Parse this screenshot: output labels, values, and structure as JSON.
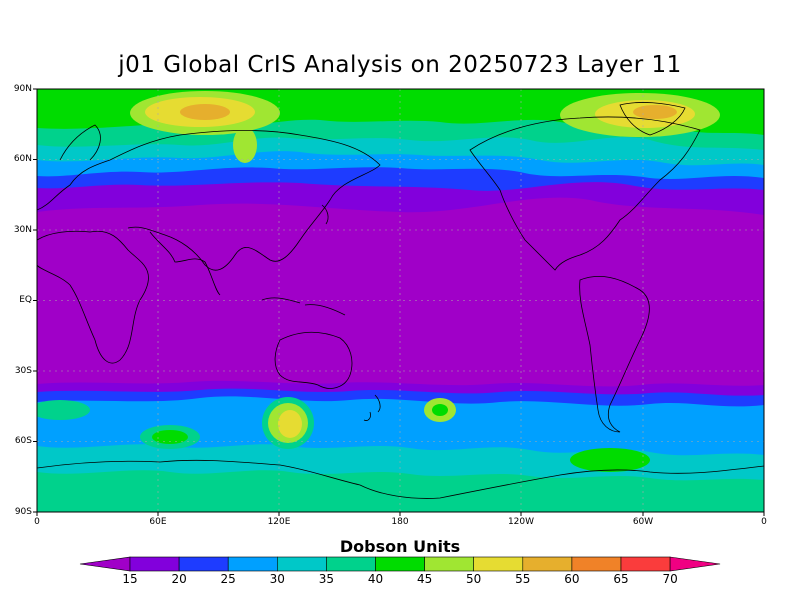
{
  "title": "j01 Global CrIS Analysis on 20250723 Layer 11",
  "lat_labels": [
    "90N",
    "60N",
    "30N",
    "EQ",
    "30S",
    "60S",
    "90S"
  ],
  "lon_labels": [
    "0",
    "60E",
    "120E",
    "180",
    "120W",
    "60W",
    "0"
  ],
  "colorbar": {
    "title": "Dobson Units",
    "ticks": [
      "15",
      "20",
      "25",
      "30",
      "35",
      "40",
      "45",
      "50",
      "55",
      "60",
      "65",
      "70"
    ],
    "colors": [
      "#a000c8",
      "#8200dc",
      "#1e3cff",
      "#00a0ff",
      "#00c8c8",
      "#00d28c",
      "#00dc00",
      "#a0e632",
      "#e6dc32",
      "#e6af2d",
      "#f08228",
      "#fa3c3c",
      "#f00082"
    ]
  },
  "colors": {
    "band_15_20": "#a000c8",
    "band_20_25": "#8200dc",
    "band_25_30": "#1e3cff",
    "band_30_35": "#00a0ff",
    "band_35_40": "#00c8c8",
    "band_40_45": "#00d28c",
    "band_45_50": "#00dc00",
    "band_50_55": "#a0e632",
    "band_55_60": "#e6dc32",
    "band_60_65": "#e6af2d"
  }
}
